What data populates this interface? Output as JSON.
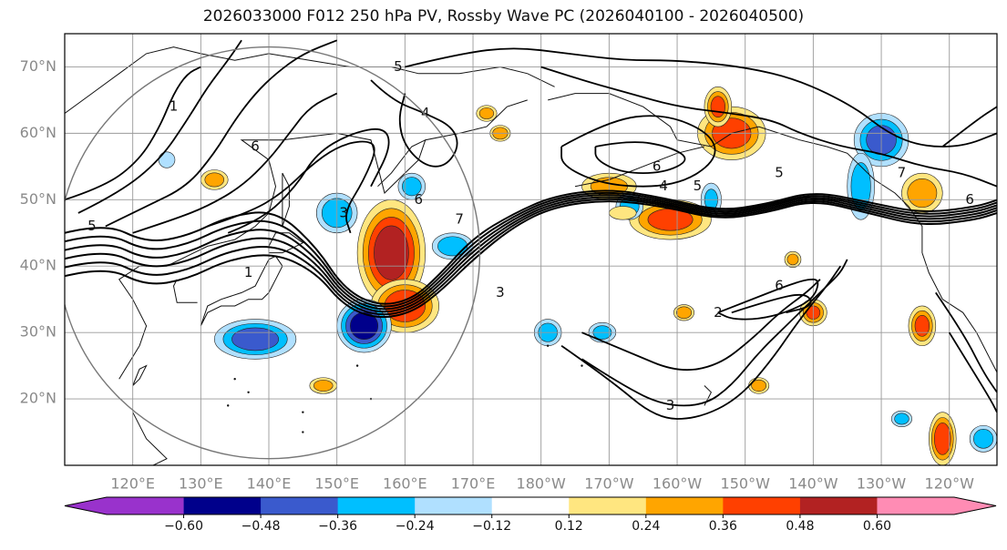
{
  "title": "2026033000 F012 250 hPa PV, Rossby Wave PC (2026040100 - 2026040500)",
  "chart_data": {
    "type": "heatmap",
    "title": "2026033000 F012 250 hPa PV, Rossby Wave PC (2026040100 - 2026040500)",
    "projection": "equirectangular",
    "lon_range_east": [
      110,
      247
    ],
    "lat_range": [
      10,
      75
    ],
    "x_ticks": [
      "120°E",
      "130°E",
      "140°E",
      "150°E",
      "160°E",
      "170°E",
      "180°W",
      "170°W",
      "160°W",
      "150°W",
      "140°W",
      "130°W",
      "120°W"
    ],
    "x_tick_lons": [
      120,
      130,
      140,
      150,
      160,
      170,
      180,
      190,
      200,
      210,
      220,
      230,
      240
    ],
    "y_ticks": [
      "20°N",
      "30°N",
      "40°N",
      "50°N",
      "60°N",
      "70°N"
    ],
    "y_tick_lats": [
      20,
      30,
      40,
      50,
      60,
      70
    ],
    "colorbar": {
      "ticks": [
        "−0.60",
        "−0.48",
        "−0.36",
        "−0.24",
        "−0.12",
        "0.12",
        "0.24",
        "0.36",
        "0.48",
        "0.60"
      ],
      "boundaries": [
        -0.6,
        -0.48,
        -0.36,
        -0.24,
        -0.12,
        0.12,
        0.24,
        0.36,
        0.48,
        0.6
      ],
      "colors": [
        "#9932cc",
        "#00008b",
        "#3a5acd",
        "#00bfff",
        "#b0e0ff",
        "#ffffff",
        "#ffe680",
        "#ffa500",
        "#ff4000",
        "#b22222",
        "#ff8cb4"
      ]
    },
    "circle": {
      "center_lon": 140,
      "center_lat": 42,
      "radius_deg": 31
    },
    "contour_labels": [
      {
        "text": "1",
        "lon": 137,
        "lat": 39
      },
      {
        "text": "3",
        "lon": 151,
        "lat": 48
      },
      {
        "text": "5",
        "lon": 114,
        "lat": 46
      },
      {
        "text": "7",
        "lon": 168,
        "lat": 47
      },
      {
        "text": "4",
        "lon": 163,
        "lat": 63
      },
      {
        "text": "6",
        "lon": 197,
        "lat": 55
      },
      {
        "text": "4",
        "lon": 198,
        "lat": 52
      },
      {
        "text": "5",
        "lon": 203,
        "lat": 52
      },
      {
        "text": "5",
        "lon": 215,
        "lat": 54
      },
      {
        "text": "7",
        "lon": 233,
        "lat": 54
      },
      {
        "text": "6",
        "lon": 243,
        "lat": 50
      },
      {
        "text": "3",
        "lon": 174,
        "lat": 36
      },
      {
        "text": "2",
        "lon": 206,
        "lat": 33
      },
      {
        "text": "6",
        "lon": 215,
        "lat": 37
      },
      {
        "text": "3",
        "lon": 199,
        "lat": 19
      },
      {
        "text": "1",
        "lon": 126,
        "lat": 64
      },
      {
        "text": "6",
        "lon": 138,
        "lat": 58
      },
      {
        "text": "5",
        "lon": 159,
        "lat": 70
      },
      {
        "text": "6",
        "lon": 162,
        "lat": 50
      }
    ],
    "pv_anomalies": [
      {
        "lon": 158,
        "lat": 42,
        "value": 0.55,
        "rx": 5,
        "ry": 8
      },
      {
        "lon": 160,
        "lat": 34,
        "value": 0.45,
        "rx": 5,
        "ry": 4
      },
      {
        "lon": 154,
        "lat": 31,
        "value": -0.55,
        "rx": 4,
        "ry": 4
      },
      {
        "lon": 138,
        "lat": 29,
        "value": -0.42,
        "rx": 6,
        "ry": 3
      },
      {
        "lon": 150,
        "lat": 48,
        "value": -0.34,
        "rx": 3,
        "ry": 3
      },
      {
        "lon": 167,
        "lat": 43,
        "value": -0.33,
        "rx": 3,
        "ry": 2
      },
      {
        "lon": 161,
        "lat": 52,
        "value": -0.3,
        "rx": 2,
        "ry": 2
      },
      {
        "lon": 208,
        "lat": 60,
        "value": 0.42,
        "rx": 5,
        "ry": 4
      },
      {
        "lon": 206,
        "lat": 64,
        "value": 0.38,
        "rx": 2,
        "ry": 3
      },
      {
        "lon": 199,
        "lat": 47,
        "value": 0.4,
        "rx": 6,
        "ry": 3
      },
      {
        "lon": 190,
        "lat": 52,
        "value": 0.28,
        "rx": 4,
        "ry": 2
      },
      {
        "lon": 230,
        "lat": 59,
        "value": -0.4,
        "rx": 4,
        "ry": 4
      },
      {
        "lon": 227,
        "lat": 52,
        "value": -0.32,
        "rx": 2,
        "ry": 5
      },
      {
        "lon": 236,
        "lat": 51,
        "value": 0.32,
        "rx": 3,
        "ry": 3
      },
      {
        "lon": 220,
        "lat": 33,
        "value": 0.36,
        "rx": 2,
        "ry": 2
      },
      {
        "lon": 236,
        "lat": 31,
        "value": 0.38,
        "rx": 2,
        "ry": 3
      },
      {
        "lon": 239,
        "lat": 14,
        "value": 0.45,
        "rx": 2,
        "ry": 4
      },
      {
        "lon": 245,
        "lat": 14,
        "value": -0.32,
        "rx": 2,
        "ry": 2
      },
      {
        "lon": 132,
        "lat": 53,
        "value": 0.3,
        "rx": 2,
        "ry": 1.5
      },
      {
        "lon": 125,
        "lat": 56,
        "value": -0.2,
        "rx": 1.2,
        "ry": 1.2
      },
      {
        "lon": 174,
        "lat": 60,
        "value": 0.35,
        "rx": 1.5,
        "ry": 1.2
      },
      {
        "lon": 172,
        "lat": 63,
        "value": 0.3,
        "rx": 1.5,
        "ry": 1.2
      },
      {
        "lon": 193,
        "lat": 49,
        "value": -0.3,
        "rx": 2,
        "ry": 2
      },
      {
        "lon": 181,
        "lat": 30,
        "value": -0.3,
        "rx": 2,
        "ry": 2
      },
      {
        "lon": 189,
        "lat": 30,
        "value": -0.28,
        "rx": 2,
        "ry": 1.5
      },
      {
        "lon": 201,
        "lat": 33,
        "value": 0.35,
        "rx": 1.5,
        "ry": 1.2
      },
      {
        "lon": 212,
        "lat": 22,
        "value": 0.32,
        "rx": 1.5,
        "ry": 1.2
      },
      {
        "lon": 148,
        "lat": 22,
        "value": 0.3,
        "rx": 2,
        "ry": 1.2
      },
      {
        "lon": 233,
        "lat": 17,
        "value": -0.3,
        "rx": 1.5,
        "ry": 1.2
      },
      {
        "lon": 217,
        "lat": 41,
        "value": 0.28,
        "rx": 1.2,
        "ry": 1.2
      },
      {
        "lon": 205,
        "lat": 50,
        "value": -0.25,
        "rx": 1.5,
        "ry": 2.5
      },
      {
        "lon": 192,
        "lat": 48,
        "value": 0.22,
        "rx": 2,
        "ry": 1
      }
    ]
  }
}
